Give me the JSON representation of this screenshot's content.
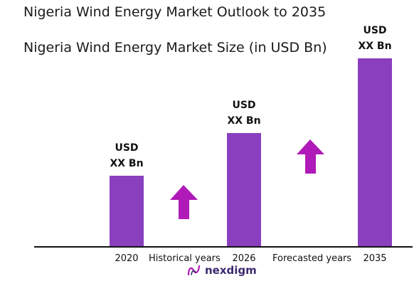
{
  "header": {
    "title": "Nigeria Wind Energy Market Outlook to 2035",
    "subtitle": "Nigeria Wind Energy Market Size (in USD Bn)"
  },
  "chart_data": {
    "type": "bar",
    "categories": [
      "2020",
      "2026",
      "2035"
    ],
    "values": [
      1,
      1.6,
      2.65
    ],
    "data_labels": [
      {
        "line1": "USD",
        "line2": "XX Bn"
      },
      {
        "line1": "USD",
        "line2": "XX Bn"
      },
      {
        "line1": "USD",
        "line2": "XX Bn"
      }
    ],
    "annotations": [
      "Historical years",
      "Forecasted years"
    ],
    "bar_color": "#8a3fbf",
    "arrow_color": "#b01ab8",
    "grid": false,
    "legend": "none"
  },
  "brand": {
    "name": "nexdigm",
    "logo_color": "#b01ab8"
  }
}
